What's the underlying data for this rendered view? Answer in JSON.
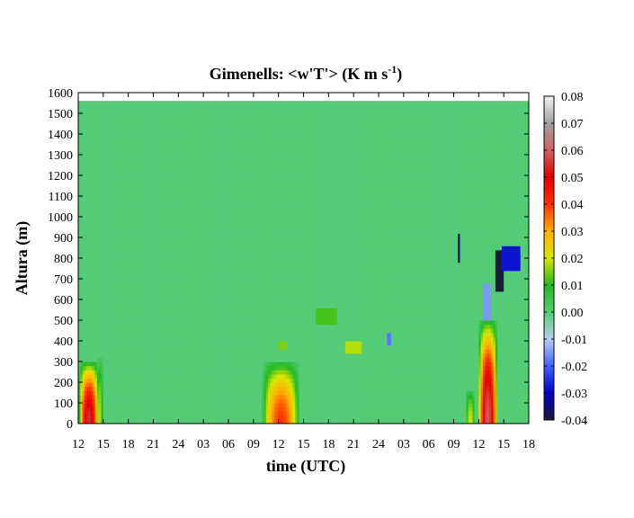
{
  "chart_data": {
    "type": "heatmap",
    "title": "Gimenells: <w'T'> (K m s",
    "title_superscript": "-1",
    "title_suffix": ")",
    "xlabel": "time (UTC)",
    "ylabel": "Altura (m)",
    "x_tick_labels": [
      "12",
      "15",
      "18",
      "21",
      "24",
      "03",
      "06",
      "09",
      "12",
      "15",
      "18",
      "21",
      "24",
      "03",
      "06",
      "09",
      "12",
      "15",
      "18"
    ],
    "xlim_hours": [
      0,
      54
    ],
    "y_ticks": [
      0,
      100,
      200,
      300,
      400,
      500,
      600,
      700,
      800,
      900,
      1000,
      1100,
      1200,
      1300,
      1400,
      1500,
      1600
    ],
    "ylim": [
      0,
      1600
    ],
    "data_top_height": 1550,
    "background_value": 0.0,
    "colorbar": {
      "min": -0.04,
      "max": 0.08,
      "ticks": [
        "0.08",
        "0.07",
        "0.06",
        "0.05",
        "0.04",
        "0.03",
        "0.02",
        "0.01",
        "0.00",
        "-0.01",
        "-0.02",
        "-0.03",
        "-0.04"
      ],
      "stops": [
        {
          "value": -0.04,
          "color": "#1a1a3a"
        },
        {
          "value": -0.03,
          "color": "#0000c8"
        },
        {
          "value": -0.02,
          "color": "#4060ff"
        },
        {
          "value": -0.01,
          "color": "#b8d0f0"
        },
        {
          "value": 0.0,
          "color": "#55cc77"
        },
        {
          "value": 0.01,
          "color": "#22b822"
        },
        {
          "value": 0.02,
          "color": "#d8e800"
        },
        {
          "value": 0.03,
          "color": "#ffb000"
        },
        {
          "value": 0.04,
          "color": "#ff3000"
        },
        {
          "value": 0.05,
          "color": "#e00000"
        },
        {
          "value": 0.06,
          "color": "#d06060"
        },
        {
          "value": 0.07,
          "color": "#a0a0a0"
        },
        {
          "value": 0.08,
          "color": "#f4f4f4"
        }
      ]
    },
    "features": [
      {
        "kind": "plume",
        "t_center": 1.3,
        "t_halfwidth": 1.3,
        "z_top": 300,
        "peak": 0.055
      },
      {
        "kind": "plume",
        "t_center": 2.6,
        "t_halfwidth": 0.4,
        "z_top": 320,
        "peak": 0.018
      },
      {
        "kind": "plume",
        "t_center": 24.3,
        "t_halfwidth": 2.3,
        "z_top": 300,
        "peak": 0.04
      },
      {
        "kind": "plume",
        "t_center": 47.0,
        "t_halfwidth": 0.6,
        "z_top": 170,
        "peak": 0.02
      },
      {
        "kind": "plume",
        "t_center": 49.1,
        "t_halfwidth": 1.2,
        "z_top": 500,
        "peak": 0.06
      },
      {
        "kind": "patch",
        "t0": 50.0,
        "t1": 51.0,
        "z0": 650,
        "z1": 850,
        "value": -0.045
      },
      {
        "kind": "patch",
        "t0": 50.8,
        "t1": 53.0,
        "z0": 750,
        "z1": 860,
        "value": -0.028
      },
      {
        "kind": "patch",
        "t0": 45.5,
        "t1": 45.8,
        "z0": 780,
        "z1": 930,
        "value": -0.035
      },
      {
        "kind": "patch",
        "t0": 48.5,
        "t1": 49.5,
        "z0": 500,
        "z1": 680,
        "value": -0.015
      },
      {
        "kind": "patch",
        "t0": 37.0,
        "t1": 37.6,
        "z0": 380,
        "z1": 450,
        "value": -0.018
      },
      {
        "kind": "patch",
        "t0": 28.5,
        "t1": 31.0,
        "z0": 480,
        "z1": 560,
        "value": 0.012
      },
      {
        "kind": "patch",
        "t0": 32.0,
        "t1": 34.0,
        "z0": 350,
        "z1": 400,
        "value": 0.018
      },
      {
        "kind": "patch",
        "t0": 24.0,
        "t1": 25.0,
        "z0": 360,
        "z1": 400,
        "value": 0.015
      }
    ]
  }
}
